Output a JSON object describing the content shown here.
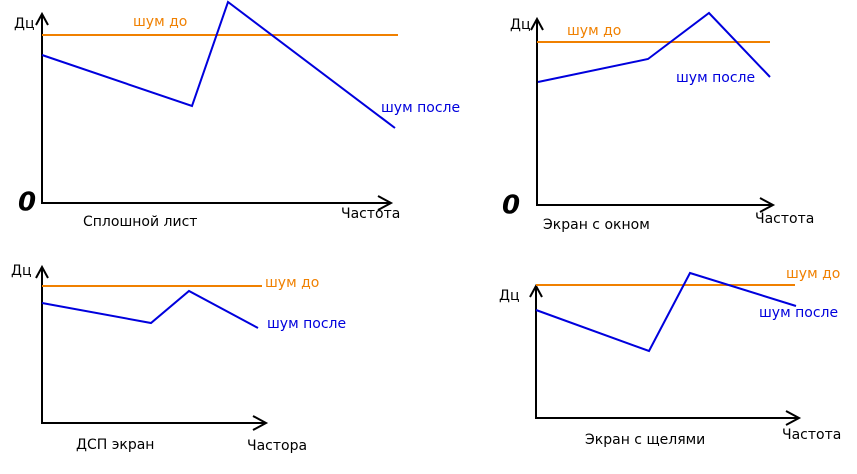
{
  "panels": [
    {
      "y_label": "Дц",
      "before_label": "шум  до",
      "after_label": "шум после",
      "x_label": "Частота",
      "caption": "Сплошной  лист",
      "origin": "0"
    },
    {
      "y_label": "Дц",
      "before_label": "шум  до",
      "after_label": "шум  после",
      "x_label": "Частота",
      "caption": "Экран  с  окном",
      "origin": "0"
    },
    {
      "y_label": "Дц",
      "before_label": "шум  до",
      "after_label": "шум  после",
      "x_label": "Частора",
      "caption": "ДСП  экран"
    },
    {
      "y_label": "Дц",
      "before_label": "шум  до",
      "after_label": "шум  после",
      "x_label": "Частота",
      "caption": "Экран  с  щелями"
    }
  ]
}
